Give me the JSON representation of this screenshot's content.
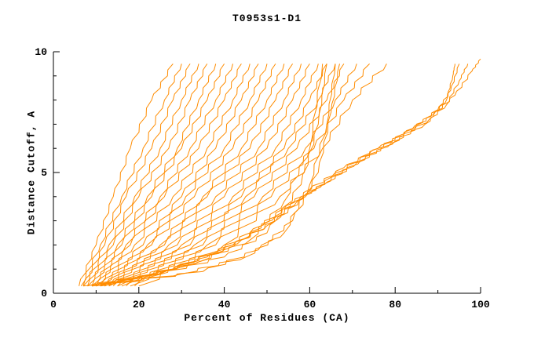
{
  "chart_data": {
    "type": "line",
    "title": "T0953s1-D1",
    "xlabel": "Percent of Residues (CA)",
    "ylabel": "Distance Cutoff, A",
    "xlim": [
      0,
      100
    ],
    "ylim": [
      0,
      10
    ],
    "x_major_ticks": [
      0,
      20,
      40,
      60,
      80,
      100
    ],
    "x_minor_ticks": [
      10,
      30,
      50,
      70,
      90
    ],
    "y_major_ticks": [
      0,
      5,
      10
    ],
    "y_minor_ticks": [
      1,
      2,
      3,
      4,
      6,
      7,
      8,
      9
    ],
    "grid": false,
    "legend": "none",
    "line_color": "#ff8c00",
    "axis_color": "#000000",
    "series": [
      [
        [
          6,
          0.3
        ],
        [
          10,
          2
        ],
        [
          14,
          4
        ],
        [
          18,
          6
        ],
        [
          23,
          8
        ],
        [
          28,
          9.5
        ]
      ],
      [
        [
          6.5,
          0.3
        ],
        [
          11,
          2
        ],
        [
          16,
          4
        ],
        [
          21,
          6
        ],
        [
          26,
          8
        ],
        [
          30,
          9.5
        ]
      ],
      [
        [
          7,
          0.3
        ],
        [
          12,
          2
        ],
        [
          17,
          4
        ],
        [
          23,
          6
        ],
        [
          28,
          8
        ],
        [
          32,
          9.5
        ]
      ],
      [
        [
          7,
          0.3
        ],
        [
          13,
          2
        ],
        [
          19,
          4
        ],
        [
          25,
          6
        ],
        [
          30,
          8
        ],
        [
          34,
          9.5
        ]
      ],
      [
        [
          8,
          0.3
        ],
        [
          14,
          2
        ],
        [
          20,
          4
        ],
        [
          27,
          6
        ],
        [
          32,
          8
        ],
        [
          36,
          9.5
        ]
      ],
      [
        [
          8,
          0.3
        ],
        [
          15,
          2
        ],
        [
          22,
          4
        ],
        [
          29,
          6
        ],
        [
          34,
          8
        ],
        [
          38,
          9.5
        ]
      ],
      [
        [
          9,
          0.3
        ],
        [
          16,
          2
        ],
        [
          23,
          4
        ],
        [
          30,
          6
        ],
        [
          36,
          8
        ],
        [
          40,
          9.5
        ]
      ],
      [
        [
          9,
          0.3
        ],
        [
          17,
          2
        ],
        [
          25,
          4
        ],
        [
          32,
          6
        ],
        [
          38,
          8
        ],
        [
          42,
          9.5
        ]
      ],
      [
        [
          10,
          0.3
        ],
        [
          18,
          2
        ],
        [
          26,
          4
        ],
        [
          34,
          6
        ],
        [
          40,
          8
        ],
        [
          44,
          9.5
        ]
      ],
      [
        [
          10,
          0.3
        ],
        [
          19,
          2
        ],
        [
          28,
          4
        ],
        [
          36,
          6
        ],
        [
          42,
          8
        ],
        [
          46,
          9.5
        ]
      ],
      [
        [
          11,
          0.3
        ],
        [
          21,
          2
        ],
        [
          30,
          4
        ],
        [
          38,
          6
        ],
        [
          44,
          8
        ],
        [
          48,
          9.5
        ]
      ],
      [
        [
          11,
          0.3
        ],
        [
          22,
          2
        ],
        [
          31,
          4
        ],
        [
          40,
          6
        ],
        [
          46,
          8
        ],
        [
          50,
          9.5
        ]
      ],
      [
        [
          12,
          0.3
        ],
        [
          23,
          2
        ],
        [
          33,
          4
        ],
        [
          42,
          6
        ],
        [
          48,
          8
        ],
        [
          52,
          9.5
        ]
      ],
      [
        [
          12,
          0.3
        ],
        [
          25,
          2
        ],
        [
          35,
          4
        ],
        [
          44,
          6
        ],
        [
          50,
          8
        ],
        [
          54,
          9.5
        ]
      ],
      [
        [
          13,
          0.3
        ],
        [
          26,
          2
        ],
        [
          36,
          4
        ],
        [
          46,
          6
        ],
        [
          52,
          8
        ],
        [
          56,
          9.5
        ]
      ],
      [
        [
          13,
          0.3
        ],
        [
          27,
          2
        ],
        [
          38,
          4
        ],
        [
          48,
          6
        ],
        [
          54,
          8
        ],
        [
          58,
          9.5
        ]
      ],
      [
        [
          14,
          0.3
        ],
        [
          29,
          2
        ],
        [
          40,
          4
        ],
        [
          50,
          6
        ],
        [
          56,
          8
        ],
        [
          60,
          9.5
        ]
      ],
      [
        [
          15,
          0.3
        ],
        [
          30,
          2
        ],
        [
          42,
          4
        ],
        [
          52,
          6
        ],
        [
          58,
          8
        ],
        [
          62,
          9.5
        ]
      ],
      [
        [
          15,
          0.3
        ],
        [
          32,
          2
        ],
        [
          44,
          4
        ],
        [
          54,
          6
        ],
        [
          60,
          8
        ],
        [
          64,
          9.5
        ]
      ],
      [
        [
          16,
          0.3
        ],
        [
          33,
          2
        ],
        [
          45,
          4
        ],
        [
          55,
          6
        ],
        [
          62,
          8
        ],
        [
          66,
          9.5
        ]
      ],
      [
        [
          17,
          0.3
        ],
        [
          35,
          2
        ],
        [
          47,
          4
        ],
        [
          57,
          6
        ],
        [
          64,
          8
        ],
        [
          68,
          9.5
        ]
      ],
      [
        [
          18,
          0.3
        ],
        [
          36,
          2
        ],
        [
          49,
          4
        ],
        [
          59,
          6
        ],
        [
          66,
          8
        ],
        [
          71,
          9.5
        ]
      ],
      [
        [
          19,
          0.3
        ],
        [
          38,
          2
        ],
        [
          51,
          4
        ],
        [
          61,
          6
        ],
        [
          68,
          8
        ],
        [
          74,
          9.5
        ]
      ],
      [
        [
          20,
          0.3
        ],
        [
          40,
          2
        ],
        [
          53,
          4
        ],
        [
          63,
          6
        ],
        [
          70,
          8
        ],
        [
          78,
          9.5
        ]
      ],
      [
        [
          8,
          0.3
        ],
        [
          25,
          0.8
        ],
        [
          40,
          1.5
        ],
        [
          50,
          2.5
        ],
        [
          58,
          4.5
        ],
        [
          62,
          7
        ],
        [
          64,
          9.5
        ]
      ],
      [
        [
          9,
          0.3
        ],
        [
          30,
          0.8
        ],
        [
          45,
          1.5
        ],
        [
          54,
          2.5
        ],
        [
          60,
          4.5
        ],
        [
          64,
          7
        ],
        [
          66,
          9.5
        ]
      ],
      [
        [
          10,
          0.3
        ],
        [
          35,
          0.9
        ],
        [
          48,
          1.8
        ],
        [
          56,
          3
        ],
        [
          62,
          5
        ],
        [
          65,
          7.5
        ],
        [
          67,
          9.5
        ]
      ],
      [
        [
          7,
          0.3
        ],
        [
          20,
          0.7
        ],
        [
          34,
          1.3
        ],
        [
          46,
          2.2
        ],
        [
          54,
          3.8
        ],
        [
          60,
          6
        ],
        [
          63,
          9.5
        ]
      ],
      [
        [
          10,
          0.3
        ],
        [
          24,
          0.8
        ],
        [
          36,
          1.5
        ],
        [
          46,
          2.5
        ],
        [
          54,
          3.5
        ],
        [
          60,
          4.3
        ],
        [
          68,
          5.2
        ],
        [
          76,
          6
        ],
        [
          84,
          6.8
        ],
        [
          90,
          7.6
        ],
        [
          93,
          8.4
        ],
        [
          95,
          9.5
        ]
      ],
      [
        [
          11,
          0.3
        ],
        [
          26,
          0.9
        ],
        [
          40,
          1.8
        ],
        [
          50,
          2.8
        ],
        [
          57,
          3.8
        ],
        [
          63,
          4.5
        ],
        [
          71,
          5.4
        ],
        [
          79,
          6.2
        ],
        [
          87,
          7
        ],
        [
          92,
          7.8
        ],
        [
          95,
          8.8
        ],
        [
          97,
          9.5
        ]
      ],
      [
        [
          12,
          0.3
        ],
        [
          28,
          1
        ],
        [
          42,
          2
        ],
        [
          52,
          3
        ],
        [
          59,
          4
        ],
        [
          65,
          4.8
        ],
        [
          74,
          5.8
        ],
        [
          82,
          6.6
        ],
        [
          89,
          7.4
        ],
        [
          94,
          8.2
        ],
        [
          98,
          9.2
        ],
        [
          100,
          9.7
        ]
      ],
      [
        [
          9,
          0.3
        ],
        [
          22,
          0.7
        ],
        [
          34,
          1.3
        ],
        [
          44,
          2.2
        ],
        [
          52,
          3.2
        ],
        [
          58,
          4
        ],
        [
          64,
          4.6
        ],
        [
          72,
          5.5
        ],
        [
          80,
          6.3
        ],
        [
          88,
          7.2
        ],
        [
          92,
          8
        ],
        [
          93.5,
          9
        ],
        [
          94,
          9.5
        ]
      ]
    ]
  }
}
